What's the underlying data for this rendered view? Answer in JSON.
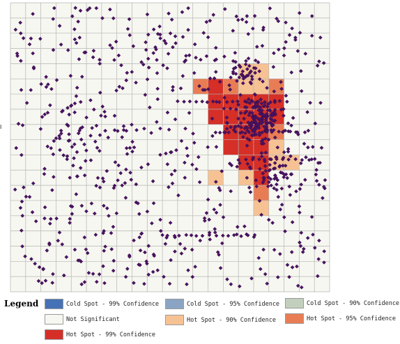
{
  "colors": {
    "background": "#f7f7f1",
    "grid": "#b4b4b4",
    "point": "#4b1264",
    "point_outline": "#2a0a3a"
  },
  "legend": {
    "title": "Legend",
    "items": [
      {
        "label": "Cold Spot - 99% Confidence",
        "color": "#4572b6"
      },
      {
        "label": "Cold Spot - 95% Confidence",
        "color": "#8ba4c4"
      },
      {
        "label": "Cold Spot - 90% Confidence",
        "color": "#c3cfbd"
      },
      {
        "label": "Not Significant",
        "color": "#f7f7f1"
      },
      {
        "label": "Hot Spot - 90% Confidence",
        "color": "#f7c293"
      },
      {
        "label": "Hot Spot - 95% Confidence",
        "color": "#e87d55"
      },
      {
        "label": "Hot Spot - 99% Confidence",
        "color": "#d52f27"
      }
    ]
  },
  "grid": {
    "cols": 21,
    "rows": 19
  },
  "hot_cells": [
    {
      "col": 15,
      "row": 4,
      "level": 90
    },
    {
      "col": 16,
      "row": 4,
      "level": 90
    },
    {
      "col": 12,
      "row": 5,
      "level": 95
    },
    {
      "col": 13,
      "row": 5,
      "level": 99
    },
    {
      "col": 14,
      "row": 5,
      "level": 95
    },
    {
      "col": 15,
      "row": 5,
      "level": 90
    },
    {
      "col": 16,
      "row": 5,
      "level": 90
    },
    {
      "col": 17,
      "row": 5,
      "level": 95
    },
    {
      "col": 13,
      "row": 6,
      "level": 99
    },
    {
      "col": 14,
      "row": 6,
      "level": 99
    },
    {
      "col": 15,
      "row": 6,
      "level": 99
    },
    {
      "col": 16,
      "row": 6,
      "level": 99
    },
    {
      "col": 17,
      "row": 6,
      "level": 99
    },
    {
      "col": 13,
      "row": 7,
      "level": 99
    },
    {
      "col": 14,
      "row": 7,
      "level": 99
    },
    {
      "col": 15,
      "row": 7,
      "level": 99
    },
    {
      "col": 16,
      "row": 7,
      "level": 99
    },
    {
      "col": 17,
      "row": 7,
      "level": 99
    },
    {
      "col": 14,
      "row": 8,
      "level": 99
    },
    {
      "col": 15,
      "row": 8,
      "level": 99
    },
    {
      "col": 16,
      "row": 8,
      "level": 99
    },
    {
      "col": 17,
      "row": 8,
      "level": 95
    },
    {
      "col": 14,
      "row": 9,
      "level": 99
    },
    {
      "col": 15,
      "row": 9,
      "level": 99
    },
    {
      "col": 16,
      "row": 9,
      "level": 99
    },
    {
      "col": 17,
      "row": 9,
      "level": 90
    },
    {
      "col": 15,
      "row": 10,
      "level": 99
    },
    {
      "col": 16,
      "row": 10,
      "level": 99
    },
    {
      "col": 17,
      "row": 10,
      "level": 90
    },
    {
      "col": 18,
      "row": 10,
      "level": 90
    },
    {
      "col": 13,
      "row": 11,
      "level": 90
    },
    {
      "col": 15,
      "row": 11,
      "level": 90
    },
    {
      "col": 16,
      "row": 11,
      "level": 99
    },
    {
      "col": 16,
      "row": 12,
      "level": 95
    },
    {
      "col": 16,
      "row": 13,
      "level": 90
    }
  ],
  "point_clusters": [
    {
      "col": 16.5,
      "row": 7.6,
      "count": 150,
      "spread": 1.4
    },
    {
      "col": 15.5,
      "row": 4.5,
      "count": 35,
      "spread": 0.9
    },
    {
      "col": 17.2,
      "row": 11.2,
      "count": 45,
      "spread": 1.2
    },
    {
      "col": 10.5,
      "row": 3.0,
      "count": 25,
      "spread": 2.0
    },
    {
      "col": 5.0,
      "row": 9.0,
      "count": 25,
      "spread": 2.5
    }
  ],
  "background_point_count": 560
}
